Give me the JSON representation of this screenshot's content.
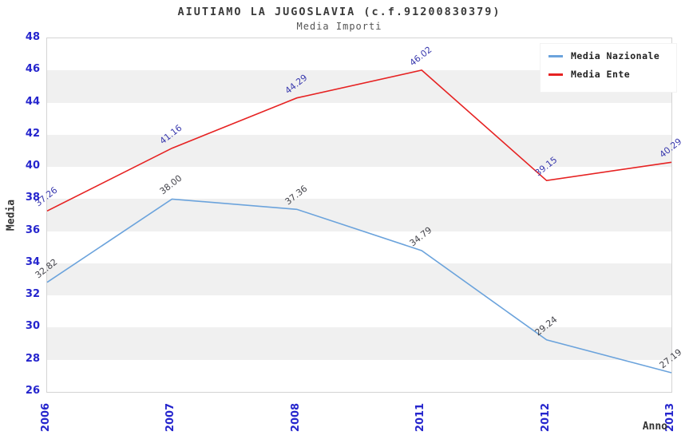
{
  "chart_data": {
    "type": "line",
    "title": "AIUTIAMO LA JUGOSLAVIA (c.f.91200830379)",
    "subtitle": "Media Importi",
    "xlabel": "Anno",
    "ylabel": "Media",
    "categories": [
      "2006",
      "2007",
      "2008",
      "2011",
      "2012",
      "2013"
    ],
    "series": [
      {
        "name": "Media Nazionale",
        "color": "#6BA3DC",
        "label_color": "#45454c",
        "values": [
          32.82,
          38.0,
          37.36,
          34.79,
          29.24,
          27.19
        ]
      },
      {
        "name": "Media Ente",
        "color": "#E62222",
        "label_color": "#3A3AAE",
        "values": [
          37.26,
          41.16,
          44.29,
          46.02,
          39.15,
          40.29
        ]
      }
    ],
    "ylim": [
      26,
      48
    ],
    "ytick_step": 2,
    "grid": "alternating-horizontal-bands",
    "band_gray": "#f0f0f0",
    "plot_border": "#d4d4d4",
    "tick_label_color": "#2525cd",
    "legend_position": "top-right",
    "value_label_decimals": 2
  }
}
